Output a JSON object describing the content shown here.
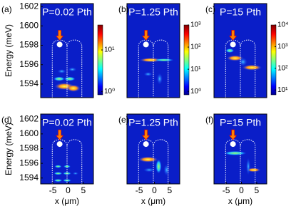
{
  "chart_data": [
    {
      "type": "heatmap",
      "panel_label": "(a)",
      "annotation": "P=0.02 Pth",
      "ylabel": "Energy (meV)",
      "xlim": [
        -9,
        8.3
      ],
      "ylim": [
        1592.6,
        1602.3
      ],
      "yticks": [
        1594,
        1596,
        1598,
        1600,
        1602
      ],
      "colorbar": {
        "log": true,
        "lim": [
          0.83,
          40
        ],
        "ticks": [
          {
            "value": 1,
            "label": "10⁰"
          },
          {
            "value": 10,
            "label": "10¹"
          }
        ]
      }
    },
    {
      "type": "heatmap",
      "panel_label": "(b)",
      "annotation": "P=1.25 Pth",
      "xlim": [
        -9,
        8.3
      ],
      "ylim": [
        1592.6,
        1602.3
      ],
      "colorbar": {
        "log": true,
        "lim": [
          0.7,
          1000
        ],
        "ticks": [
          {
            "value": 1,
            "label": "10⁰"
          },
          {
            "value": 10,
            "label": "10¹"
          },
          {
            "value": 100,
            "label": "10²"
          },
          {
            "value": 1000,
            "label": "10³"
          }
        ]
      }
    },
    {
      "type": "heatmap",
      "panel_label": "(c)",
      "annotation": "P=15 Pth",
      "xlim": [
        -9,
        8.3
      ],
      "ylim": [
        1592.6,
        1602.3
      ],
      "colorbar": {
        "log": true,
        "lim": [
          6,
          10000
        ],
        "ticks": [
          {
            "value": 10,
            "label": "10¹"
          },
          {
            "value": 100,
            "label": "10²"
          },
          {
            "value": 1000,
            "label": "10³"
          },
          {
            "value": 10000,
            "label": "10⁴"
          }
        ]
      }
    },
    {
      "type": "heatmap",
      "panel_label": "(d)",
      "annotation": "P=0.02 Pth",
      "ylabel": "Energy (meV)",
      "xlabel": "x (μm)",
      "xlim": [
        -9,
        8.3
      ],
      "ylim": [
        1593.2,
        1602.7
      ],
      "yticks": [
        1594,
        1596,
        1598,
        1600,
        1602
      ],
      "xticks": [
        -5,
        0,
        5
      ]
    },
    {
      "type": "heatmap",
      "panel_label": "(e)",
      "annotation": "P=1.25 Pth",
      "xlabel": "x (μm)",
      "xlim": [
        -9,
        8.3
      ],
      "ylim": [
        1593.2,
        1602.7
      ],
      "xticks": [
        -5,
        0,
        5
      ]
    },
    {
      "type": "heatmap",
      "panel_label": "(f)",
      "annotation": "P=15 Pth",
      "xlabel": "x (μm)",
      "xlim": [
        -9,
        8.3
      ],
      "ylim": [
        1593.2,
        1602.7
      ],
      "xticks": [
        -5,
        0,
        5
      ]
    }
  ]
}
